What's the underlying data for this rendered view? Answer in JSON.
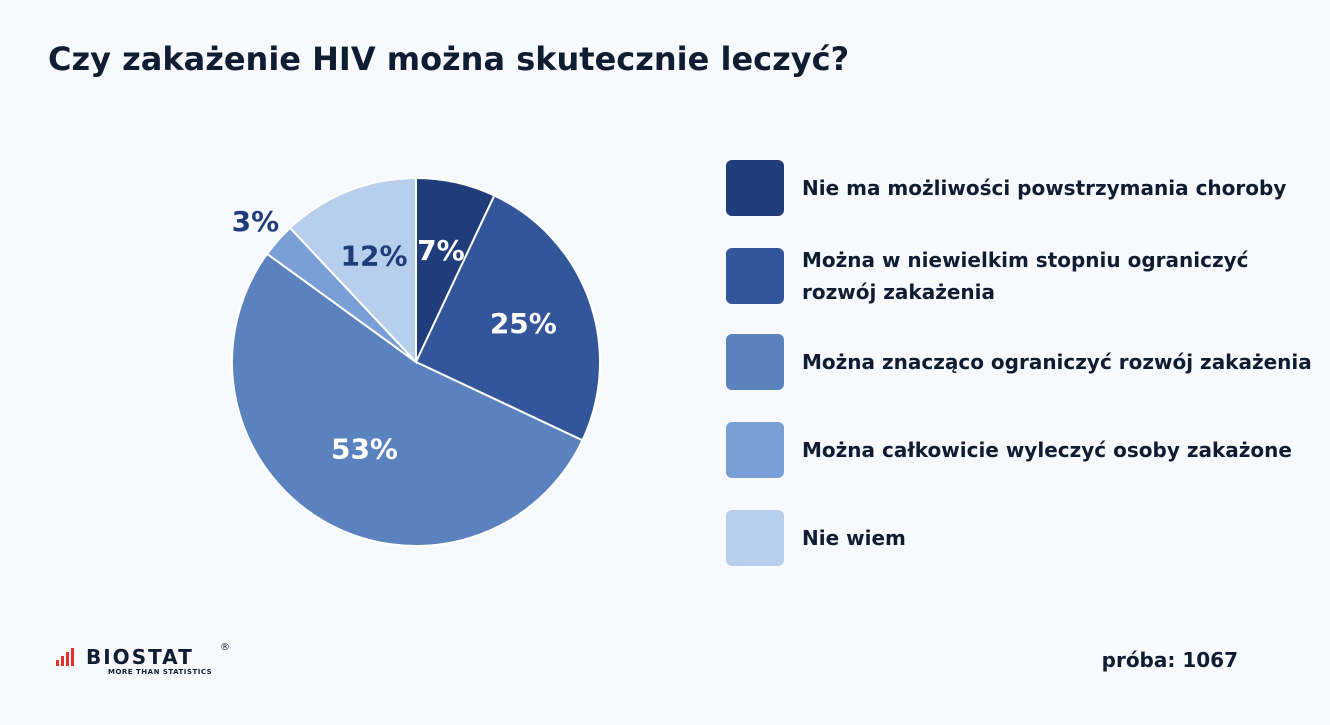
{
  "chart_data": {
    "type": "pie",
    "title": "Czy zakażenie HIV można skutecznie leczyć?",
    "categories": [
      "Nie ma możliwości powstrzymania choroby",
      "Można w niewielkim stopniu ograniczyć rozwój zakażenia",
      "Można znacząco ograniczyć rozwój zakażenia",
      "Można całkowicie wyleczyć osoby zakażone",
      "Nie wiem"
    ],
    "values": [
      7,
      25,
      53,
      3,
      12
    ],
    "value_labels": [
      "7%",
      "25%",
      "53%",
      "3%",
      "12%"
    ],
    "colors": [
      "#1f3d7a",
      "#33559a",
      "#5a82bf",
      "#789fd6",
      "#b8ceed"
    ],
    "label_colors": [
      "#ffffff",
      "#ffffff",
      "#ffffff",
      "#1f3d7a",
      "#1f3d7a"
    ],
    "legend_position": "right"
  },
  "legend": {
    "items": [
      {
        "label": "Nie ma możliwości powstrzymania choroby"
      },
      {
        "label": "Można w niewielkim stopniu ograniczyć rozwój zakażenia"
      },
      {
        "label": "Można znacząco ograniczyć rozwój zakażenia"
      },
      {
        "label": "Można całkowicie wyleczyć osoby zakażone"
      },
      {
        "label": "Nie wiem"
      }
    ]
  },
  "footer": {
    "logo_text": "BIOSTAT",
    "logo_registered": "®",
    "logo_tagline": "MORE THAN STATISTICS",
    "logo_bar_color": "#e0312b",
    "sample": "próba: 1067"
  }
}
